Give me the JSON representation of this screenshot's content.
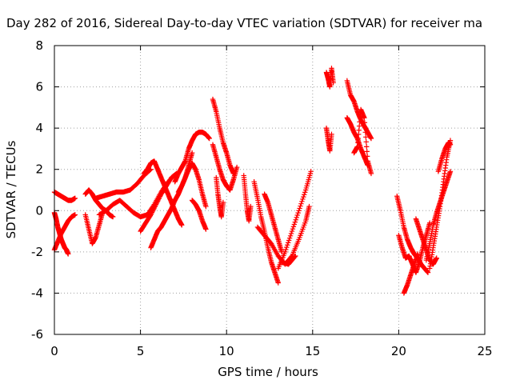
{
  "chart_data": {
    "type": "scatter",
    "title": "Day 282 of 2016, Sidereal Day-to-day VTEC variation (SDTVAR) for receiver ma",
    "xlabel": "GPS time / hours",
    "ylabel": "SDTVAR / TECUs",
    "xlim": [
      0,
      25
    ],
    "ylim": [
      -6,
      8
    ],
    "xticks": [
      0,
      5,
      10,
      15,
      20,
      25
    ],
    "yticks": [
      -6,
      -4,
      -2,
      0,
      2,
      4,
      6,
      8
    ],
    "grid": true,
    "marker": "+",
    "marker_color": "#ff0000",
    "series": [
      {
        "x": [
          0.0,
          0.2,
          0.4,
          0.6,
          0.8,
          1.0,
          1.2
        ],
        "y": [
          0.9,
          0.8,
          0.7,
          0.6,
          0.5,
          0.5,
          0.6
        ]
      },
      {
        "x": [
          0.0,
          0.1,
          0.2,
          0.3,
          0.4,
          0.5,
          0.6,
          0.7,
          0.8
        ],
        "y": [
          -0.1,
          -0.4,
          -0.8,
          -1.1,
          -1.4,
          -1.6,
          -1.8,
          -1.9,
          -2.1
        ]
      },
      {
        "x": [
          0.0,
          0.2,
          0.4,
          0.6,
          0.8,
          1.0,
          1.2
        ],
        "y": [
          -1.9,
          -1.5,
          -1.1,
          -0.8,
          -0.5,
          -0.3,
          -0.2
        ]
      },
      {
        "x": [
          1.8,
          2.0,
          2.2,
          2.4,
          2.6,
          2.8,
          3.0,
          3.2,
          3.4
        ],
        "y": [
          0.8,
          1.0,
          0.8,
          0.5,
          0.3,
          0.1,
          0.0,
          -0.2,
          -0.3
        ]
      },
      {
        "x": [
          1.8,
          2.0,
          2.2,
          2.4,
          2.6,
          2.8
        ],
        "y": [
          -0.2,
          -0.9,
          -1.6,
          -1.3,
          -0.7,
          -0.1
        ]
      },
      {
        "x": [
          2.4,
          2.8,
          3.2,
          3.6,
          4.0,
          4.4,
          4.8,
          5.2,
          5.6
        ],
        "y": [
          0.6,
          0.7,
          0.8,
          0.9,
          0.9,
          1.0,
          1.3,
          1.7,
          2.0
        ]
      },
      {
        "x": [
          2.6,
          3.0,
          3.4,
          3.8,
          4.2,
          4.6,
          5.0,
          5.4,
          5.8,
          6.2,
          6.6
        ],
        "y": [
          -0.2,
          0.0,
          0.3,
          0.5,
          0.2,
          -0.1,
          -0.3,
          -0.2,
          0.3,
          0.9,
          1.4
        ]
      },
      {
        "x": [
          5.2,
          5.4,
          5.6,
          5.8,
          6.0,
          6.2,
          6.4,
          6.6,
          6.8,
          7.0,
          7.2,
          7.4
        ],
        "y": [
          1.8,
          2.0,
          2.3,
          2.4,
          2.0,
          1.6,
          1.2,
          0.8,
          0.4,
          0.0,
          -0.4,
          -0.7
        ]
      },
      {
        "x": [
          5.0,
          5.3,
          5.6,
          5.9,
          6.2,
          6.5,
          6.8,
          7.1
        ],
        "y": [
          -1.0,
          -0.6,
          -0.2,
          0.3,
          0.8,
          1.2,
          1.6,
          1.8
        ]
      },
      {
        "x": [
          5.6,
          5.8,
          6.0,
          6.2,
          6.4,
          6.6,
          6.8,
          7.0,
          7.2,
          7.4,
          7.6,
          7.8,
          8.0
        ],
        "y": [
          -1.8,
          -1.4,
          -1.0,
          -0.8,
          -0.5,
          -0.2,
          0.1,
          0.5,
          0.8,
          1.2,
          1.6,
          2.2,
          2.8
        ]
      },
      {
        "x": [
          7.0,
          7.2,
          7.4,
          7.6,
          7.8,
          8.0,
          8.2,
          8.4,
          8.6,
          8.8,
          9.0
        ],
        "y": [
          1.4,
          1.8,
          2.1,
          2.4,
          3.0,
          3.4,
          3.7,
          3.8,
          3.8,
          3.7,
          3.5
        ]
      },
      {
        "x": [
          7.2,
          7.4,
          7.6,
          7.8,
          8.0,
          8.2,
          8.4,
          8.6,
          8.8
        ],
        "y": [
          0.9,
          1.2,
          1.6,
          2.0,
          2.3,
          2.0,
          1.5,
          0.8,
          0.2
        ]
      },
      {
        "x": [
          8.0,
          8.2,
          8.4,
          8.6,
          8.8
        ],
        "y": [
          0.5,
          0.3,
          0.0,
          -0.5,
          -0.9
        ]
      },
      {
        "x": [
          9.2,
          9.4,
          9.6,
          9.8,
          10.0,
          10.2,
          10.4
        ],
        "y": [
          5.4,
          4.8,
          4.0,
          3.3,
          2.8,
          2.2,
          1.8
        ]
      },
      {
        "x": [
          9.2,
          9.4,
          9.6,
          9.8,
          10.0,
          10.2,
          10.4,
          10.6
        ],
        "y": [
          3.2,
          2.6,
          2.0,
          1.5,
          1.2,
          1.0,
          1.5,
          2.1
        ]
      },
      {
        "x": [
          9.4,
          9.5,
          9.6,
          9.7,
          9.8
        ],
        "y": [
          1.6,
          0.8,
          0.2,
          -0.3,
          0.4
        ]
      },
      {
        "x": [
          11.0,
          11.1,
          11.2,
          11.3,
          11.4
        ],
        "y": [
          1.7,
          0.8,
          0.0,
          -0.5,
          0.2
        ]
      },
      {
        "x": [
          11.6,
          11.8,
          12.0,
          12.2,
          12.4,
          12.6,
          12.8,
          13.0
        ],
        "y": [
          1.4,
          0.6,
          -0.3,
          -1.0,
          -1.8,
          -2.5,
          -3.0,
          -3.5
        ]
      },
      {
        "x": [
          11.8,
          12.2,
          12.6,
          13.0,
          13.4,
          13.8,
          14.2,
          14.6,
          14.8
        ],
        "y": [
          -0.8,
          -1.2,
          -1.6,
          -2.2,
          -2.6,
          -2.2,
          -1.4,
          -0.5,
          0.2
        ]
      },
      {
        "x": [
          12.2,
          12.4,
          12.6,
          12.8,
          13.0,
          13.2
        ],
        "y": [
          0.8,
          0.4,
          -0.2,
          -0.8,
          -1.4,
          -2.0
        ]
      },
      {
        "x": [
          13.0,
          13.4,
          13.8,
          14.2,
          14.6,
          14.9
        ],
        "y": [
          -2.8,
          -2.0,
          -1.0,
          0.0,
          1.0,
          1.9
        ]
      },
      {
        "x": [
          13.2,
          13.6,
          14.0
        ],
        "y": [
          -2.5,
          -2.6,
          -2.2
        ]
      },
      {
        "x": [
          15.8,
          15.9,
          16.0,
          16.1,
          16.2
        ],
        "y": [
          6.7,
          6.4,
          6.0,
          6.9,
          6.2
        ]
      },
      {
        "x": [
          15.8,
          15.9,
          16.0,
          16.1
        ],
        "y": [
          4.0,
          3.4,
          2.9,
          3.7
        ]
      },
      {
        "x": [
          17.0,
          17.2,
          17.4,
          17.6,
          17.8,
          18.0,
          18.2,
          18.4
        ],
        "y": [
          6.3,
          5.6,
          5.3,
          4.8,
          4.4,
          4.1,
          3.8,
          3.5
        ]
      },
      {
        "x": [
          17.0,
          17.2,
          17.4,
          17.6,
          17.8,
          18.0,
          18.2
        ],
        "y": [
          4.5,
          4.2,
          3.8,
          3.5,
          3.0,
          2.6,
          2.2
        ]
      },
      {
        "x": [
          17.4,
          17.6,
          17.8,
          18.0,
          18.2,
          18.4
        ],
        "y": [
          2.8,
          3.1,
          4.9,
          4.5,
          2.4,
          1.8
        ]
      },
      {
        "x": [
          19.9,
          20.1,
          20.3,
          20.5,
          20.7,
          20.9,
          21.1,
          21.3,
          21.5,
          21.7
        ],
        "y": [
          0.7,
          0.0,
          -0.8,
          -1.4,
          -1.8,
          -2.1,
          -2.3,
          -2.6,
          -2.8,
          -3.0
        ]
      },
      {
        "x": [
          20.0,
          20.2,
          20.4,
          20.6,
          20.8,
          21.0,
          21.2,
          21.4,
          21.6,
          21.8
        ],
        "y": [
          -1.2,
          -1.8,
          -2.3,
          -2.2,
          -2.6,
          -3.0,
          -2.5,
          -1.8,
          -1.2,
          -0.6
        ]
      },
      {
        "x": [
          20.3,
          20.5,
          20.7,
          20.9,
          21.1
        ],
        "y": [
          -4.0,
          -3.6,
          -3.1,
          -2.6,
          -2.1
        ]
      },
      {
        "x": [
          21.8,
          22.0,
          22.2,
          22.4,
          22.6,
          22.8,
          23.0
        ],
        "y": [
          -2.8,
          -1.8,
          -0.8,
          0.2,
          1.4,
          2.6,
          3.4
        ]
      },
      {
        "x": [
          21.6,
          21.8,
          22.0,
          22.2,
          22.4,
          22.6,
          22.8,
          23.0
        ],
        "y": [
          -2.4,
          -1.6,
          -0.7,
          -0.1,
          0.4,
          0.9,
          1.4,
          1.9
        ]
      },
      {
        "x": [
          22.3,
          22.5,
          22.7,
          22.9,
          23.0
        ],
        "y": [
          1.9,
          2.5,
          3.0,
          3.3,
          3.2
        ]
      },
      {
        "x": [
          21.0,
          21.2,
          21.4,
          21.6,
          21.8,
          22.0,
          22.2
        ],
        "y": [
          -0.4,
          -0.9,
          -1.4,
          -1.9,
          -2.4,
          -2.6,
          -2.3
        ]
      }
    ]
  }
}
